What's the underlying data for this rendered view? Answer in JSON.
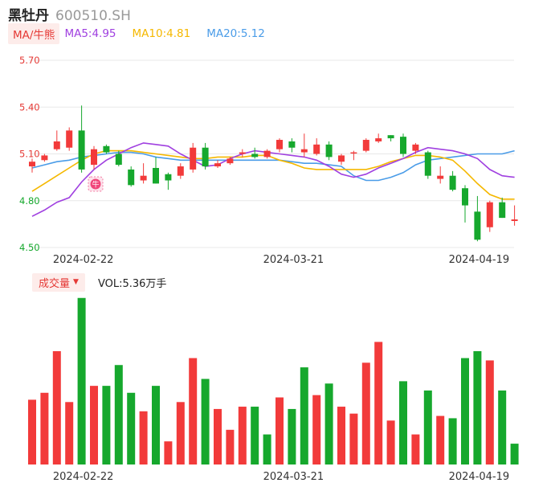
{
  "stock": {
    "name": "黑牡丹",
    "code": "600510.SH"
  },
  "legend": {
    "ma_tag": "MA/牛熊",
    "ma5": {
      "label": "MA5:4.95",
      "color": "#a040e0"
    },
    "ma10": {
      "label": "MA10:4.81",
      "color": "#f5b800"
    },
    "ma20": {
      "label": "MA20:5.12",
      "color": "#4a9ce8"
    }
  },
  "volume_legend": {
    "tag": "成交量",
    "text": "VOL:5.36万手"
  },
  "colors": {
    "up": "#f23a3a",
    "down": "#16a82d",
    "grid": "#e8e8e8",
    "price_tick": "#e53935",
    "low_tick": "#16a82d"
  },
  "chart_data": [
    {
      "type": "candlestick",
      "yticks": [
        5.7,
        5.4,
        5.1,
        4.8,
        4.5
      ],
      "ytick_labels": [
        "5.70",
        "5.40",
        "5.10",
        "4.80",
        "4.50"
      ],
      "ylim": [
        4.5,
        5.7
      ],
      "xtick_labels": [
        {
          "index": 4,
          "label": "2024-02-22"
        },
        {
          "index": 21,
          "label": "2024-03-21"
        },
        {
          "index": 36,
          "label": "2024-04-19"
        }
      ],
      "marker": {
        "index": 5,
        "label": "牛"
      },
      "candles": [
        {
          "o": 5.02,
          "c": 5.05,
          "h": 5.07,
          "l": 4.98
        },
        {
          "o": 5.06,
          "c": 5.09,
          "h": 5.1,
          "l": 5.05
        },
        {
          "o": 5.13,
          "c": 5.18,
          "h": 5.25,
          "l": 5.12
        },
        {
          "o": 5.14,
          "c": 5.25,
          "h": 5.27,
          "l": 5.12
        },
        {
          "o": 5.25,
          "c": 5.0,
          "h": 5.41,
          "l": 4.98
        },
        {
          "o": 5.03,
          "c": 5.13,
          "h": 5.15,
          "l": 5.0
        },
        {
          "o": 5.15,
          "c": 5.11,
          "h": 5.16,
          "l": 5.1
        },
        {
          "o": 5.1,
          "c": 5.03,
          "h": 5.12,
          "l": 5.02
        },
        {
          "o": 5.0,
          "c": 4.9,
          "h": 5.02,
          "l": 4.89
        },
        {
          "o": 4.93,
          "c": 4.96,
          "h": 5.04,
          "l": 4.91
        },
        {
          "o": 5.01,
          "c": 4.91,
          "h": 5.08,
          "l": 4.91
        },
        {
          "o": 4.97,
          "c": 4.93,
          "h": 4.98,
          "l": 4.87
        },
        {
          "o": 4.96,
          "c": 5.02,
          "h": 5.04,
          "l": 4.94
        },
        {
          "o": 5.0,
          "c": 5.14,
          "h": 5.17,
          "l": 4.98
        },
        {
          "o": 5.14,
          "c": 5.02,
          "h": 5.17,
          "l": 5.0
        },
        {
          "o": 5.02,
          "c": 5.04,
          "h": 5.06,
          "l": 5.01
        },
        {
          "o": 5.04,
          "c": 5.07,
          "h": 5.08,
          "l": 5.03
        },
        {
          "o": 5.1,
          "c": 5.11,
          "h": 5.13,
          "l": 5.08
        },
        {
          "o": 5.1,
          "c": 5.08,
          "h": 5.14,
          "l": 5.07
        },
        {
          "o": 5.08,
          "c": 5.12,
          "h": 5.13,
          "l": 5.07
        },
        {
          "o": 5.13,
          "c": 5.19,
          "h": 5.2,
          "l": 5.11
        },
        {
          "o": 5.18,
          "c": 5.14,
          "h": 5.2,
          "l": 5.11
        },
        {
          "o": 5.11,
          "c": 5.13,
          "h": 5.23,
          "l": 5.08
        },
        {
          "o": 5.1,
          "c": 5.16,
          "h": 5.2,
          "l": 5.09
        },
        {
          "o": 5.16,
          "c": 5.08,
          "h": 5.18,
          "l": 5.06
        },
        {
          "o": 5.05,
          "c": 5.09,
          "h": 5.1,
          "l": 5.03
        },
        {
          "o": 5.11,
          "c": 5.11,
          "h": 5.12,
          "l": 5.06
        },
        {
          "o": 5.12,
          "c": 5.19,
          "h": 5.2,
          "l": 5.11
        },
        {
          "o": 5.18,
          "c": 5.2,
          "h": 5.23,
          "l": 5.17
        },
        {
          "o": 5.22,
          "c": 5.2,
          "h": 5.22,
          "l": 5.18
        },
        {
          "o": 5.21,
          "c": 5.1,
          "h": 5.23,
          "l": 5.08
        },
        {
          "o": 5.12,
          "c": 5.16,
          "h": 5.17,
          "l": 5.1
        },
        {
          "o": 5.11,
          "c": 4.96,
          "h": 5.12,
          "l": 4.94
        },
        {
          "o": 4.94,
          "c": 4.96,
          "h": 5.02,
          "l": 4.91
        },
        {
          "o": 4.96,
          "c": 4.87,
          "h": 4.99,
          "l": 4.86
        },
        {
          "o": 4.88,
          "c": 4.77,
          "h": 4.9,
          "l": 4.66
        },
        {
          "o": 4.73,
          "c": 4.55,
          "h": 4.83,
          "l": 4.54
        },
        {
          "o": 4.63,
          "c": 4.79,
          "h": 4.8,
          "l": 4.6
        },
        {
          "o": 4.79,
          "c": 4.69,
          "h": 4.82,
          "l": 4.69
        },
        {
          "o": 4.67,
          "c": 4.68,
          "h": 4.77,
          "l": 4.64
        }
      ],
      "ma5": [
        4.7,
        4.74,
        4.79,
        4.82,
        4.92,
        5.0,
        5.06,
        5.1,
        5.14,
        5.17,
        5.16,
        5.15,
        5.1,
        5.06,
        5.02,
        5.03,
        5.07,
        5.1,
        5.12,
        5.11,
        5.1,
        5.09,
        5.08,
        5.06,
        5.02,
        4.97,
        4.95,
        4.97,
        5.01,
        5.04,
        5.07,
        5.11,
        5.14,
        5.13,
        5.12,
        5.1,
        5.07,
        5.0,
        4.96,
        4.95
      ],
      "ma10": [
        4.86,
        4.91,
        4.96,
        5.01,
        5.06,
        5.1,
        5.12,
        5.12,
        5.12,
        5.11,
        5.1,
        5.09,
        5.08,
        5.07,
        5.07,
        5.08,
        5.08,
        5.08,
        5.09,
        5.09,
        5.06,
        5.04,
        5.01,
        5.0,
        5.0,
        5.0,
        5.0,
        5.0,
        5.02,
        5.05,
        5.07,
        5.09,
        5.09,
        5.08,
        5.06,
        4.99,
        4.91,
        4.84,
        4.81,
        4.81
      ],
      "ma20": [
        5.01,
        5.03,
        5.05,
        5.06,
        5.08,
        5.09,
        5.1,
        5.11,
        5.11,
        5.1,
        5.08,
        5.07,
        5.06,
        5.06,
        5.06,
        5.06,
        5.06,
        5.06,
        5.06,
        5.06,
        5.06,
        5.05,
        5.04,
        5.04,
        5.03,
        5.02,
        4.96,
        4.93,
        4.93,
        4.95,
        4.98,
        5.03,
        5.06,
        5.07,
        5.08,
        5.09,
        5.1,
        5.1,
        5.1,
        5.12
      ]
    },
    {
      "type": "bar",
      "title": "成交量",
      "ylim": [
        0,
        7.4
      ],
      "xtick_labels": [
        {
          "index": 4,
          "label": "2024-02-22"
        },
        {
          "index": 21,
          "label": "2024-03-21"
        },
        {
          "index": 36,
          "label": "2024-04-19"
        }
      ],
      "values": [
        2.8,
        3.1,
        4.9,
        2.7,
        7.2,
        3.4,
        3.4,
        4.3,
        3.1,
        2.3,
        3.4,
        1.0,
        2.7,
        4.6,
        3.7,
        2.4,
        1.5,
        2.5,
        2.5,
        1.3,
        2.9,
        2.4,
        4.2,
        3.0,
        3.5,
        2.5,
        2.2,
        4.4,
        5.3,
        1.9,
        3.6,
        1.3,
        3.2,
        2.1,
        2.0,
        4.6,
        4.9,
        4.5,
        3.2,
        0.9
      ],
      "directions": [
        "up",
        "up",
        "up",
        "up",
        "down",
        "up",
        "down",
        "down",
        "down",
        "up",
        "down",
        "up",
        "up",
        "up",
        "down",
        "up",
        "up",
        "up",
        "down",
        "down",
        "up",
        "down",
        "down",
        "up",
        "down",
        "up",
        "up",
        "up",
        "up",
        "up",
        "down",
        "up",
        "down",
        "up",
        "down",
        "down",
        "down",
        "up",
        "down",
        "down"
      ]
    }
  ]
}
